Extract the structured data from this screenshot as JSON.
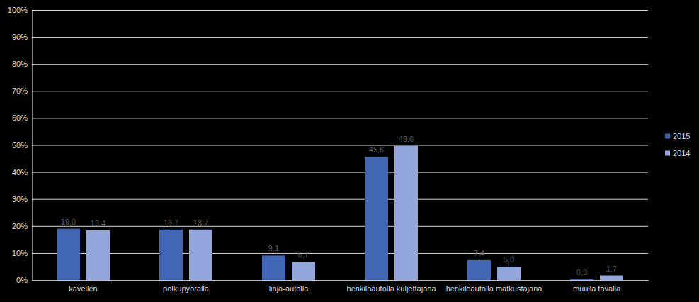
{
  "chart_data": {
    "type": "bar",
    "categories": [
      "kävellen",
      "polkupyörällä",
      "linja-autolla",
      "henkilöautolla kuljettajana",
      "henkilöautolla matkustajana",
      "muulla tavalla"
    ],
    "series": [
      {
        "name": "2015",
        "color": "#4166b3",
        "values": [
          19.0,
          18.7,
          9.1,
          45.6,
          7.4,
          0.3
        ],
        "value_labels": [
          "19,0",
          "18,7",
          "9,1",
          "45,6",
          "7,4",
          "0,3"
        ]
      },
      {
        "name": "2014",
        "color": "#93a7dd",
        "values": [
          18.4,
          18.7,
          6.7,
          49.6,
          5.0,
          1.7
        ],
        "value_labels": [
          "18,4",
          "18,7",
          "6,7",
          "49,6",
          "5,0",
          "1,7"
        ]
      }
    ],
    "ylim": [
      0,
      100
    ],
    "yticks": [
      {
        "value": 0,
        "label": "0%"
      },
      {
        "value": 10,
        "label": "10%"
      },
      {
        "value": 20,
        "label": "20%"
      },
      {
        "value": 30,
        "label": "30%"
      },
      {
        "value": 40,
        "label": "40%"
      },
      {
        "value": 50,
        "label": "50%"
      },
      {
        "value": 60,
        "label": "60%"
      },
      {
        "value": 70,
        "label": "70%"
      },
      {
        "value": 80,
        "label": "80%"
      },
      {
        "value": 90,
        "label": "90%"
      },
      {
        "value": 100,
        "label": "100%"
      }
    ],
    "grid": true,
    "data_labels": true,
    "legend": "right"
  }
}
